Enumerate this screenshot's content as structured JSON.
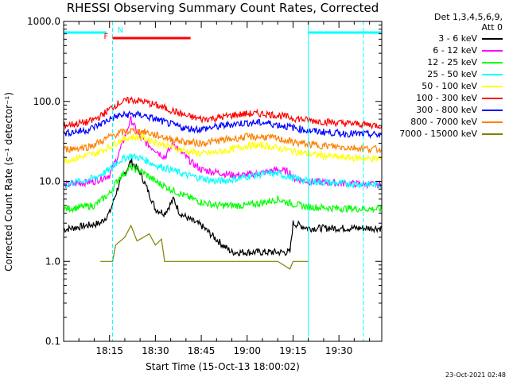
{
  "chart_data": {
    "type": "line",
    "title": "RHESSI Observing Summary Count Rates, Corrected",
    "ylabel": "Corrected Count Rate (s⁻¹ detector⁻¹)",
    "xlabel": "Start Time (15-Oct-13 18:00:02)",
    "yscale": "log",
    "ylim": [
      0.1,
      1000
    ],
    "xlim_minutes": [
      0,
      104
    ],
    "ytick_labels": [
      "0.1",
      "1.0",
      "10.0",
      "100.0",
      "1000.0"
    ],
    "ytick_values": [
      0.1,
      1,
      10,
      100,
      1000
    ],
    "xtick_labels": [
      "18:15",
      "18:30",
      "18:45",
      "19:00",
      "19:15",
      "19:30"
    ],
    "xtick_minutes": [
      15,
      30,
      45,
      60,
      75,
      90
    ],
    "grid": false,
    "legend_placement": "right",
    "detectors": "Det 1,3,4,5,6,9,",
    "attenuator": "Att 0",
    "series": [
      {
        "name": "3 - 6 keV",
        "color": "#000000",
        "points": [
          [
            0,
            2.5
          ],
          [
            12,
            3.0
          ],
          [
            15,
            4.0
          ],
          [
            18,
            9
          ],
          [
            22,
            18
          ],
          [
            25,
            13
          ],
          [
            28,
            7
          ],
          [
            30,
            4.5
          ],
          [
            33,
            4
          ],
          [
            36,
            6
          ],
          [
            38,
            4
          ],
          [
            42,
            3.2
          ],
          [
            45,
            2.8
          ],
          [
            48,
            2.2
          ],
          [
            52,
            1.6
          ],
          [
            55,
            1.3
          ],
          [
            58,
            1.3
          ],
          [
            62,
            1.3
          ],
          [
            66,
            1.3
          ],
          [
            70,
            1.3
          ],
          [
            74,
            1.3
          ],
          [
            75,
            3.0
          ],
          [
            80,
            2.6
          ],
          [
            90,
            2.6
          ],
          [
            104,
            2.6
          ]
        ]
      },
      {
        "name": "6 - 12 keV",
        "color": "#ff00ff",
        "points": [
          [
            0,
            9
          ],
          [
            10,
            10
          ],
          [
            15,
            12
          ],
          [
            18,
            22
          ],
          [
            22,
            60
          ],
          [
            25,
            35
          ],
          [
            28,
            28
          ],
          [
            30,
            25
          ],
          [
            33,
            20
          ],
          [
            36,
            30
          ],
          [
            38,
            24
          ],
          [
            42,
            17
          ],
          [
            45,
            14
          ],
          [
            50,
            13
          ],
          [
            55,
            12
          ],
          [
            60,
            12
          ],
          [
            66,
            13
          ],
          [
            70,
            14
          ],
          [
            74,
            13
          ],
          [
            75,
            11
          ],
          [
            80,
            10
          ],
          [
            90,
            9.5
          ],
          [
            104,
            9
          ]
        ]
      },
      {
        "name": "12 - 25 keV",
        "color": "#00ff00",
        "points": [
          [
            0,
            4.5
          ],
          [
            10,
            5
          ],
          [
            15,
            7
          ],
          [
            18,
            11
          ],
          [
            22,
            15
          ],
          [
            26,
            13
          ],
          [
            30,
            10
          ],
          [
            35,
            8
          ],
          [
            40,
            6.5
          ],
          [
            45,
            5.5
          ],
          [
            50,
            5
          ],
          [
            55,
            5
          ],
          [
            60,
            5
          ],
          [
            66,
            5.5
          ],
          [
            70,
            6
          ],
          [
            75,
            5.2
          ],
          [
            80,
            4.8
          ],
          [
            90,
            4.6
          ],
          [
            104,
            4.5
          ]
        ]
      },
      {
        "name": "25 - 50 keV",
        "color": "#00ffff",
        "points": [
          [
            0,
            9
          ],
          [
            10,
            11
          ],
          [
            15,
            14
          ],
          [
            18,
            18
          ],
          [
            22,
            21
          ],
          [
            26,
            19
          ],
          [
            30,
            16
          ],
          [
            35,
            14
          ],
          [
            40,
            12
          ],
          [
            45,
            11
          ],
          [
            50,
            10
          ],
          [
            55,
            10.5
          ],
          [
            60,
            11.5
          ],
          [
            66,
            12.5
          ],
          [
            70,
            12.5
          ],
          [
            75,
            11
          ],
          [
            80,
            10
          ],
          [
            90,
            9.5
          ],
          [
            104,
            9
          ]
        ]
      },
      {
        "name": "50 - 100 keV",
        "color": "#ffff00",
        "points": [
          [
            0,
            18
          ],
          [
            10,
            22
          ],
          [
            15,
            27
          ],
          [
            18,
            32
          ],
          [
            22,
            36
          ],
          [
            26,
            35
          ],
          [
            30,
            31
          ],
          [
            35,
            27
          ],
          [
            40,
            24
          ],
          [
            45,
            22
          ],
          [
            50,
            23
          ],
          [
            55,
            25
          ],
          [
            60,
            28
          ],
          [
            66,
            28
          ],
          [
            70,
            26
          ],
          [
            75,
            24
          ],
          [
            80,
            22
          ],
          [
            90,
            20
          ],
          [
            104,
            19
          ]
        ]
      },
      {
        "name": "100 - 300 keV",
        "color": "#ff0000",
        "points": [
          [
            0,
            50
          ],
          [
            8,
            55
          ],
          [
            12,
            65
          ],
          [
            15,
            80
          ],
          [
            18,
            95
          ],
          [
            22,
            105
          ],
          [
            26,
            100
          ],
          [
            30,
            90
          ],
          [
            35,
            78
          ],
          [
            40,
            66
          ],
          [
            45,
            60
          ],
          [
            50,
            62
          ],
          [
            55,
            67
          ],
          [
            60,
            70
          ],
          [
            66,
            70
          ],
          [
            70,
            67
          ],
          [
            75,
            62
          ],
          [
            80,
            58
          ],
          [
            90,
            54
          ],
          [
            104,
            50
          ]
        ]
      },
      {
        "name": "300 - 800 keV",
        "color": "#0000ff",
        "points": [
          [
            0,
            40
          ],
          [
            8,
            44
          ],
          [
            12,
            52
          ],
          [
            15,
            60
          ],
          [
            18,
            66
          ],
          [
            22,
            69
          ],
          [
            26,
            67
          ],
          [
            30,
            60
          ],
          [
            35,
            52
          ],
          [
            40,
            46
          ],
          [
            45,
            45
          ],
          [
            50,
            48
          ],
          [
            55,
            52
          ],
          [
            60,
            54
          ],
          [
            66,
            54
          ],
          [
            70,
            51
          ],
          [
            75,
            47
          ],
          [
            80,
            43
          ],
          [
            90,
            40
          ],
          [
            104,
            38
          ]
        ]
      },
      {
        "name": "800 - 7000 keV",
        "color": "#ff8000",
        "points": [
          [
            0,
            25
          ],
          [
            8,
            27
          ],
          [
            12,
            31
          ],
          [
            15,
            36
          ],
          [
            18,
            40
          ],
          [
            22,
            43
          ],
          [
            26,
            42
          ],
          [
            30,
            38
          ],
          [
            35,
            34
          ],
          [
            40,
            31
          ],
          [
            45,
            30
          ],
          [
            50,
            32
          ],
          [
            55,
            34
          ],
          [
            60,
            36
          ],
          [
            66,
            36
          ],
          [
            70,
            34
          ],
          [
            75,
            31
          ],
          [
            80,
            29
          ],
          [
            90,
            27
          ],
          [
            104,
            25
          ]
        ]
      },
      {
        "name": "7000 - 15000 keV",
        "color": "#808000",
        "points": [
          [
            12,
            1.0
          ],
          [
            16,
            1.0
          ],
          [
            17,
            1.6
          ],
          [
            20,
            2.0
          ],
          [
            22,
            2.8
          ],
          [
            24,
            1.8
          ],
          [
            28,
            2.2
          ],
          [
            30,
            1.6
          ],
          [
            32,
            1.9
          ],
          [
            33,
            1.0
          ],
          [
            40,
            1.0
          ],
          [
            55,
            1.0
          ],
          [
            60,
            1.0
          ],
          [
            70,
            1.0
          ],
          [
            74,
            0.8
          ],
          [
            75,
            1.0
          ],
          [
            80,
            1.0
          ]
        ]
      }
    ],
    "flag_bars": [
      {
        "label": "",
        "color": "#00ffff",
        "start_min": 0,
        "end_min": 14
      },
      {
        "label": "",
        "color": "#00ffff",
        "start_min": 80,
        "end_min": 104
      },
      {
        "label": "F",
        "color": "#ff0000",
        "start_min": 16,
        "end_min": 41.5
      },
      {
        "label": "N",
        "color": "#00ffff",
        "start_min": 16,
        "end_min": 16
      }
    ],
    "night_boundaries_min": [
      0,
      16,
      80,
      98
    ]
  },
  "timestamp": "23-Oct-2021 02:48"
}
